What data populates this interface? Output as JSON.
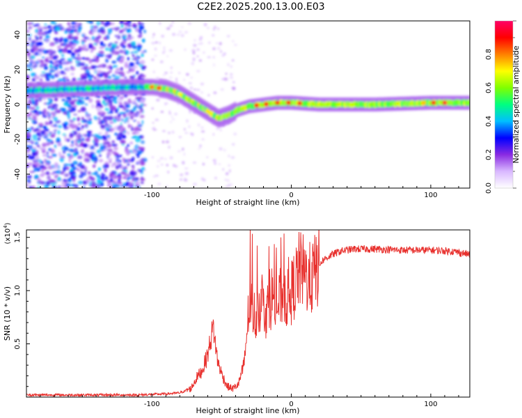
{
  "title": "C2E2.2025.200.13.00.E03",
  "chart_data": [
    {
      "type": "heatmap",
      "xlabel": "Height of straight line (km)",
      "ylabel": "Frequency (Hz)",
      "xlim": [
        -190,
        128
      ],
      "ylim": [
        -48,
        48
      ],
      "xticks": [
        -100,
        0,
        100
      ],
      "yticks": [
        -40,
        -20,
        0,
        20,
        40
      ],
      "grid": false,
      "colorbar": {
        "label": "Normalized spectral amplitude",
        "range": [
          0.0,
          1.0
        ],
        "ticks": [
          "0.0",
          "0.2",
          "0.4",
          "0.6",
          "0.8"
        ],
        "colors": [
          "#ffffff",
          "#d9b8ff",
          "#8a2be2",
          "#0000ff",
          "#00bfff",
          "#00ff80",
          "#80ff00",
          "#ffff00",
          "#ff8000",
          "#ff0000",
          "#ff0066"
        ]
      },
      "ridge": {
        "description_points": [
          {
            "x": -190,
            "y": 8
          },
          {
            "x": -150,
            "y": 9
          },
          {
            "x": -120,
            "y": 10
          },
          {
            "x": -100,
            "y": 10
          },
          {
            "x": -90,
            "y": 9
          },
          {
            "x": -80,
            "y": 6
          },
          {
            "x": -70,
            "y": 1
          },
          {
            "x": -60,
            "y": -4
          },
          {
            "x": -52,
            "y": -8
          },
          {
            "x": -45,
            "y": -6
          },
          {
            "x": -38,
            "y": -3
          },
          {
            "x": -30,
            "y": -1
          },
          {
            "x": -20,
            "y": 0
          },
          {
            "x": -10,
            "y": 1
          },
          {
            "x": 0,
            "y": 1
          },
          {
            "x": 20,
            "y": 0
          },
          {
            "x": 60,
            "y": 0
          },
          {
            "x": 100,
            "y": 1
          },
          {
            "x": 128,
            "y": 1
          }
        ]
      }
    },
    {
      "type": "line",
      "xlabel": "Height of straight line (km)",
      "ylabel": "SNR (10 * v/v)",
      "yscale_label": "(x10",
      "yscale_exp": "4",
      "yscale_close": ")",
      "xlim": [
        -190,
        128
      ],
      "ylim": [
        0,
        1.57
      ],
      "xticks": [
        -100,
        0,
        100
      ],
      "yticks": [
        0.5,
        1.0,
        1.5
      ],
      "ytick_labels": [
        "0.5",
        "1.0",
        "1.5"
      ],
      "grid": false,
      "series_color": "#e8312e",
      "points": [
        {
          "x": -190,
          "y": 0.02
        },
        {
          "x": -150,
          "y": 0.02
        },
        {
          "x": -110,
          "y": 0.02
        },
        {
          "x": -90,
          "y": 0.03
        },
        {
          "x": -80,
          "y": 0.04
        },
        {
          "x": -72,
          "y": 0.08
        },
        {
          "x": -68,
          "y": 0.18
        },
        {
          "x": -64,
          "y": 0.25
        },
        {
          "x": -60,
          "y": 0.4
        },
        {
          "x": -56,
          "y": 0.66
        },
        {
          "x": -53,
          "y": 0.35
        },
        {
          "x": -50,
          "y": 0.22
        },
        {
          "x": -46,
          "y": 0.1
        },
        {
          "x": -42,
          "y": 0.08
        },
        {
          "x": -38,
          "y": 0.12
        },
        {
          "x": -34,
          "y": 0.3
        },
        {
          "x": -30,
          "y": 0.9
        },
        {
          "x": -26,
          "y": 0.75
        },
        {
          "x": -22,
          "y": 0.9
        },
        {
          "x": -18,
          "y": 0.8
        },
        {
          "x": -14,
          "y": 0.95
        },
        {
          "x": -10,
          "y": 0.85
        },
        {
          "x": -6,
          "y": 1.0
        },
        {
          "x": -2,
          "y": 0.9
        },
        {
          "x": 2,
          "y": 1.05
        },
        {
          "x": 6,
          "y": 1.2
        },
        {
          "x": 10,
          "y": 1.15
        },
        {
          "x": 14,
          "y": 1.1
        },
        {
          "x": 18,
          "y": 1.2
        },
        {
          "x": 22,
          "y": 1.28
        },
        {
          "x": 28,
          "y": 1.33
        },
        {
          "x": 35,
          "y": 1.37
        },
        {
          "x": 45,
          "y": 1.39
        },
        {
          "x": 60,
          "y": 1.39
        },
        {
          "x": 80,
          "y": 1.38
        },
        {
          "x": 100,
          "y": 1.38
        },
        {
          "x": 115,
          "y": 1.37
        },
        {
          "x": 128,
          "y": 1.34
        }
      ]
    }
  ]
}
